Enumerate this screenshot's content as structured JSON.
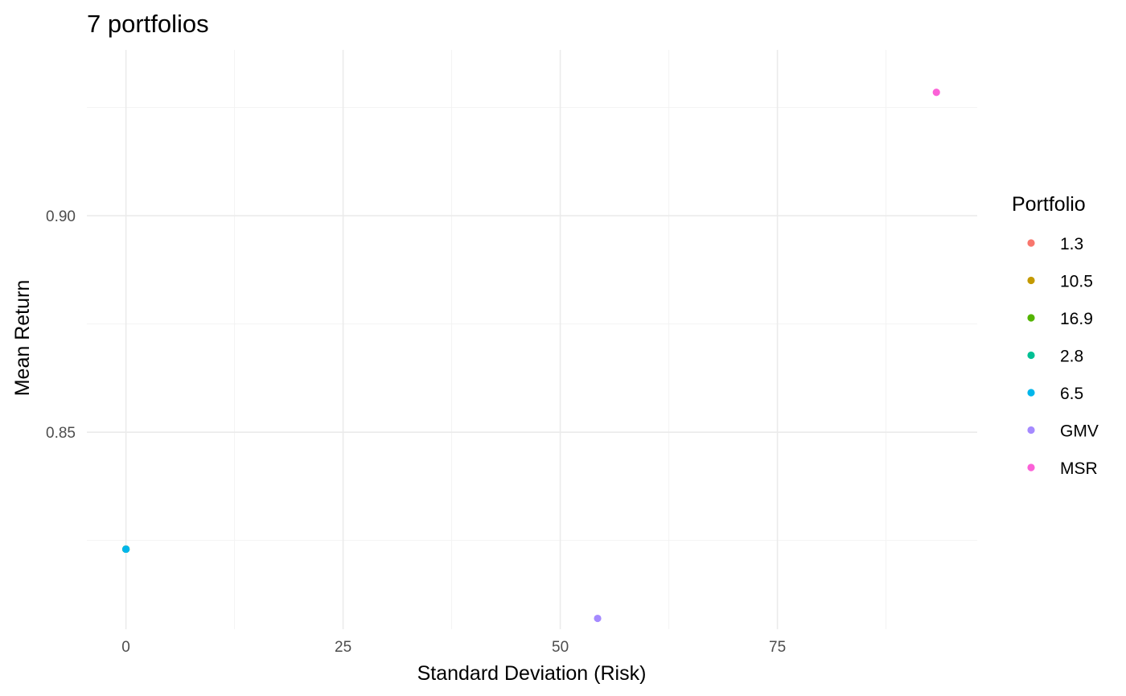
{
  "chart_data": {
    "type": "scatter",
    "title": "7 portfolios",
    "xlabel": "Standard Deviation (Risk)",
    "ylabel": "Mean Return",
    "xlim": [
      -4.5,
      98
    ],
    "ylim": [
      0.8045,
      0.9383
    ],
    "x_ticks": [
      0,
      25,
      50,
      75
    ],
    "x_tick_labels": [
      "0",
      "25",
      "50",
      "75"
    ],
    "y_ticks": [
      0.85,
      0.9
    ],
    "y_tick_labels": [
      "0.85",
      "0.90"
    ],
    "grid": true,
    "legend": {
      "title": "Portfolio",
      "position": "right"
    },
    "series": [
      {
        "name": "1.3",
        "color": "#F8766D",
        "points": [
          {
            "x": 0.0,
            "y": 0.823
          }
        ]
      },
      {
        "name": "10.5",
        "color": "#C49A00",
        "points": [
          {
            "x": 0.0,
            "y": 0.823
          }
        ]
      },
      {
        "name": "16.9",
        "color": "#53B400",
        "points": [
          {
            "x": 0.0,
            "y": 0.823
          }
        ]
      },
      {
        "name": "2.8",
        "color": "#00C094",
        "points": [
          {
            "x": 0.0,
            "y": 0.823
          }
        ]
      },
      {
        "name": "6.5",
        "color": "#00B6EB",
        "points": [
          {
            "x": 0.0,
            "y": 0.823
          }
        ]
      },
      {
        "name": "GMV",
        "color": "#A58AFF",
        "points": [
          {
            "x": 54.3,
            "y": 0.807
          }
        ]
      },
      {
        "name": "MSR",
        "color": "#FB61D7",
        "points": [
          {
            "x": 93.3,
            "y": 0.9285
          }
        ]
      }
    ]
  }
}
